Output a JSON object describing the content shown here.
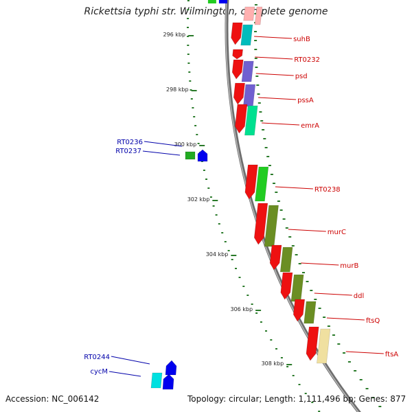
{
  "title": "Rickettsia typhi str. Wilmington, complete genome",
  "footer": {
    "accession": "Accession: NC_006142",
    "summary": "Topology: circular; Length: 1,111,496 bp; Genes: 877"
  },
  "colors": {
    "right_label": "#cc0000",
    "left_label": "#0000aa",
    "backbone": "#888888",
    "tick": "#2a7a2a"
  },
  "ruler": [
    {
      "label": "296 kbp"
    },
    {
      "label": "298 kbp"
    },
    {
      "label": "300 kbp"
    },
    {
      "label": "302 kbp"
    },
    {
      "label": "304 kbp"
    },
    {
      "label": "306 kbp"
    },
    {
      "label": "308 kbp"
    }
  ],
  "right_genes": [
    {
      "name": "suhB",
      "cog_color": "#00bcbc"
    },
    {
      "name": "RT0232",
      "cog_color": ""
    },
    {
      "name": "psd",
      "cog_color": "#7060d0"
    },
    {
      "name": "pssA",
      "cog_color": "#7060d0"
    },
    {
      "name": "emrA",
      "cog_color": "#00e090"
    },
    {
      "name": "RT0238",
      "cog_color": "#22cc22"
    },
    {
      "name": "murC",
      "cog_color": "#6b8e23"
    },
    {
      "name": "murB",
      "cog_color": "#6b8e23"
    },
    {
      "name": "ddl",
      "cog_color": "#6b8e23"
    },
    {
      "name": "ftsQ",
      "cog_color": "#6b8e23"
    },
    {
      "name": "ftsA",
      "cog_color": "#f0e0a0"
    }
  ],
  "left_genes": [
    {
      "name": "RT0236",
      "cog_color": "#22aa22"
    },
    {
      "name": "RT0237",
      "cog_color": ""
    },
    {
      "name": "RT0244",
      "cog_color": "#00e0e0"
    },
    {
      "name": "cycM",
      "cog_color": ""
    }
  ]
}
